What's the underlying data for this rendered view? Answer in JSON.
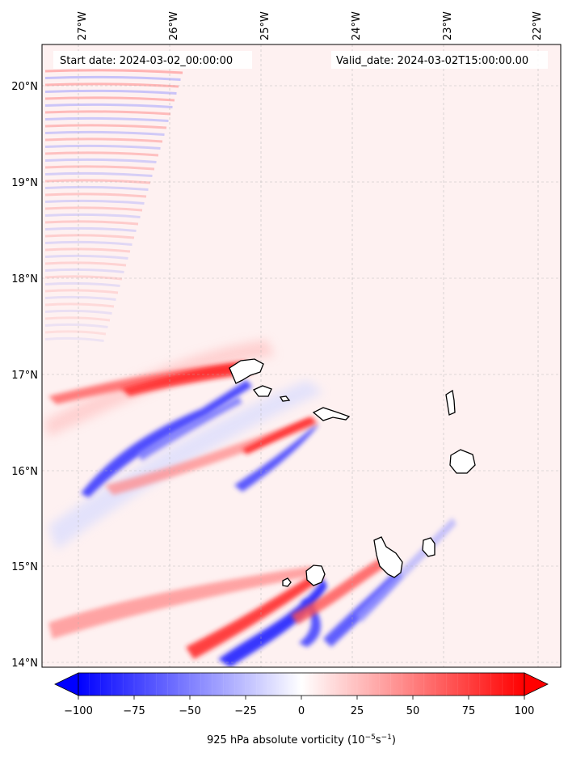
{
  "map": {
    "start_date_text": "Start date: 2024-03-02_00:00:00",
    "valid_date_text": "Valid_date: 2024-03-02T15:00:00.00",
    "lon_labels": [
      "27°W",
      "26°W",
      "25°W",
      "24°W",
      "23°W",
      "22°W"
    ],
    "lat_labels": [
      "20°N",
      "19°N",
      "18°N",
      "17°N",
      "16°N",
      "15°N",
      "14°N"
    ],
    "lon_range": [
      -27.35,
      -21.6
    ],
    "lat_range": [
      13.95,
      20.35
    ],
    "gridlines": true,
    "colormap": "blue-white-red",
    "colors": {
      "negative": "#0000ff",
      "neutral": "#ffffff",
      "positive": "#ff0000",
      "coastline": "#000000"
    }
  },
  "colorbar": {
    "label_text": "925 hPa absolute vorticity (10",
    "label_exp1": "−5",
    "label_mid": "s",
    "label_exp2": "−1",
    "label_close": ")",
    "tick_labels": [
      "−100",
      "−75",
      "−50",
      "−25",
      "0",
      "25",
      "50",
      "75",
      "100"
    ],
    "min": -100,
    "max": 100,
    "extend": "both"
  }
}
